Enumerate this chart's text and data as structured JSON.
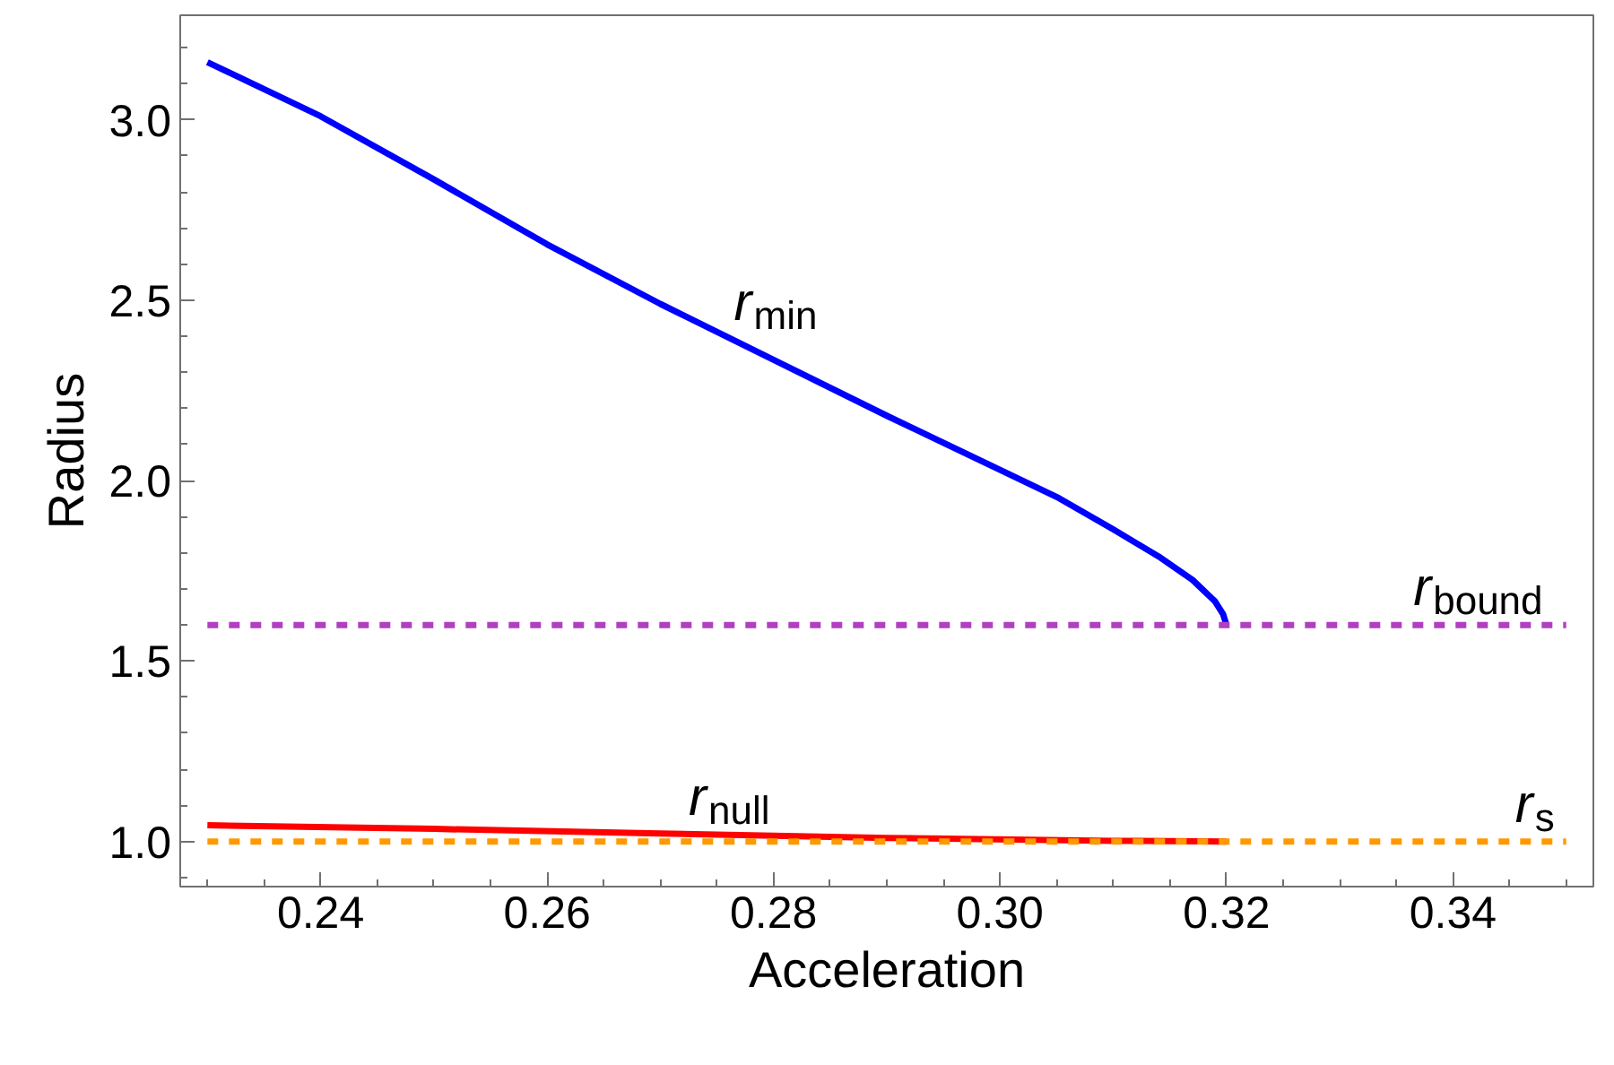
{
  "chart_data": {
    "type": "line",
    "xlabel": "Acceleration",
    "ylabel": "Radius",
    "xlim": [
      0.2276,
      0.3524
    ],
    "ylim": [
      0.875,
      3.29
    ],
    "xticks": [
      {
        "value": 0.23,
        "label": null
      },
      {
        "value": 0.235,
        "label": null
      },
      0.24,
      {
        "value": 0.245,
        "label": null
      },
      {
        "value": 0.25,
        "label": null
      },
      {
        "value": 0.255,
        "label": null
      },
      0.26,
      {
        "value": 0.265,
        "label": null
      },
      {
        "value": 0.27,
        "label": null
      },
      {
        "value": 0.275,
        "label": null
      },
      0.28,
      {
        "value": 0.285,
        "label": null
      },
      {
        "value": 0.29,
        "label": null
      },
      {
        "value": 0.295,
        "label": null
      },
      {
        "value": 0.3,
        "label": "0.30"
      },
      {
        "value": 0.305,
        "label": null
      },
      {
        "value": 0.31,
        "label": null
      },
      {
        "value": 0.315,
        "label": null
      },
      0.32,
      {
        "value": 0.325,
        "label": null
      },
      {
        "value": 0.33,
        "label": null
      },
      {
        "value": 0.335,
        "label": null
      },
      0.34,
      {
        "value": 0.345,
        "label": null
      },
      {
        "value": 0.35,
        "label": null
      }
    ],
    "yticks": [
      {
        "value": 0.9,
        "label": null
      },
      {
        "value": 1.0,
        "label": "1.0"
      },
      {
        "value": 1.1,
        "label": null
      },
      {
        "value": 1.2,
        "label": null
      },
      {
        "value": 1.3,
        "label": null
      },
      {
        "value": 1.4,
        "label": null
      },
      1.5,
      {
        "value": 1.6,
        "label": null
      },
      {
        "value": 1.7,
        "label": null
      },
      {
        "value": 1.8,
        "label": null
      },
      {
        "value": 1.9,
        "label": null
      },
      {
        "value": 2.0,
        "label": "2.0"
      },
      {
        "value": 2.1,
        "label": null
      },
      {
        "value": 2.2,
        "label": null
      },
      {
        "value": 2.3,
        "label": null
      },
      {
        "value": 2.4,
        "label": null
      },
      2.5,
      {
        "value": 2.6,
        "label": null
      },
      {
        "value": 2.7,
        "label": null
      },
      {
        "value": 2.8,
        "label": null
      },
      {
        "value": 2.9,
        "label": null
      },
      {
        "value": 3.0,
        "label": "3.0"
      },
      {
        "value": 3.1,
        "label": null
      },
      {
        "value": 3.2,
        "label": null
      }
    ],
    "grid": false,
    "marker": "none",
    "series": [
      {
        "color": "#0000ff",
        "line_style": "solid",
        "x": [
          0.23,
          0.24,
          0.25,
          0.26,
          0.27,
          0.28,
          0.29,
          0.3,
          0.305,
          0.31,
          0.314,
          0.317,
          0.319,
          0.3197,
          0.32
        ],
        "values": [
          3.16,
          3.01,
          2.835,
          2.655,
          2.49,
          2.335,
          2.18,
          2.03,
          1.955,
          1.865,
          1.79,
          1.725,
          1.665,
          1.63,
          1.6
        ]
      },
      {
        "color": "#b040c0",
        "line_style": "dashed",
        "x": [
          0.23,
          0.35
        ],
        "values": [
          1.6,
          1.6
        ]
      },
      {
        "color": "#ff0000",
        "line_style": "solid",
        "x": [
          0.23,
          0.25,
          0.27,
          0.29,
          0.31,
          0.32
        ],
        "values": [
          1.045,
          1.035,
          1.022,
          1.01,
          1.002,
          1.0
        ]
      },
      {
        "color": "#ff9900",
        "line_style": "dashed",
        "x": [
          0.23,
          0.35
        ],
        "values": [
          1.0,
          1.0
        ]
      }
    ],
    "annotations": [
      {
        "text": "r$_{min}$",
        "x": 0.2765,
        "y": 2.39
      },
      {
        "text": "r$_{bound}$",
        "x": 0.3365,
        "y": 1.6
      },
      {
        "text": "r$_{null}$",
        "x": 0.2725,
        "y": 1.019
      },
      {
        "text": "r$_{s}$",
        "x": 0.3455,
        "y": 1.0
      }
    ]
  }
}
